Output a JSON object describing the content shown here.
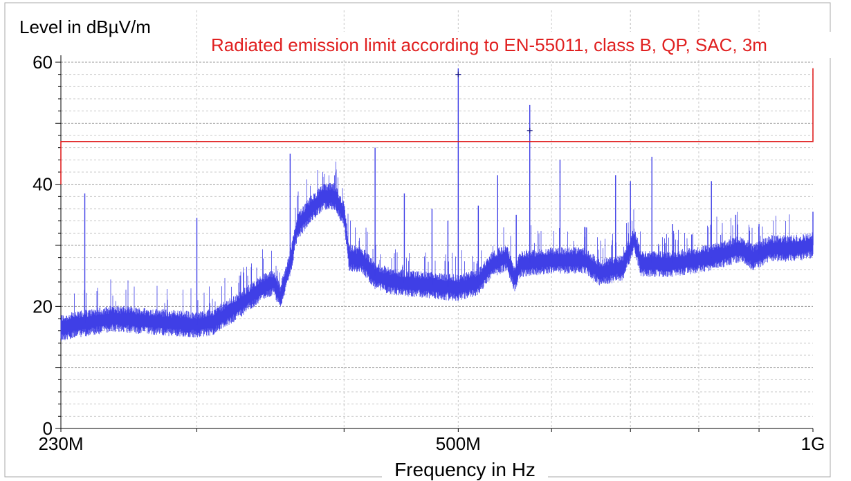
{
  "chart_data": {
    "type": "line",
    "ylabel": "Level in dBµV/m",
    "xlabel": "Frequency in Hz",
    "x_scale": "log",
    "xlim_hz": [
      230000000,
      1000000000
    ],
    "ylim": [
      0,
      60
    ],
    "x_tick_labels": [
      {
        "label": "230M",
        "value_hz": 230000000
      },
      {
        "label": "500M",
        "value_hz": 500000000
      },
      {
        "label": "1G",
        "value_hz": 1000000000
      }
    ],
    "y_tick_labels": [
      {
        "label": "0",
        "value": 0
      },
      {
        "label": "20",
        "value": 20
      },
      {
        "label": "40",
        "value": 40
      },
      {
        "label": "60",
        "value": 60
      }
    ],
    "grid": true,
    "limit_line": {
      "name": "Radiated emission limit according to EN-55011, class B, QP, SAC, 3m",
      "color": "#e02020",
      "points": [
        {
          "x_hz": 230000000,
          "y": 40
        },
        {
          "x_hz": 230000000,
          "y": 47
        },
        {
          "x_hz": 1000000000,
          "y": 47
        },
        {
          "x_hz": 1000000000,
          "y": 59
        }
      ]
    },
    "series": [
      {
        "color": "#3f3fe6",
        "baseline": [
          {
            "x_hz": 230000000,
            "y": 16.5
          },
          {
            "x_hz": 245000000,
            "y": 17.5
          },
          {
            "x_hz": 255000000,
            "y": 18.0
          },
          {
            "x_hz": 275000000,
            "y": 17.5
          },
          {
            "x_hz": 300000000,
            "y": 17.0
          },
          {
            "x_hz": 310000000,
            "y": 17.5
          },
          {
            "x_hz": 325000000,
            "y": 20.0
          },
          {
            "x_hz": 340000000,
            "y": 23.0
          },
          {
            "x_hz": 349000000,
            "y": 24.0
          },
          {
            "x_hz": 353000000,
            "y": 21.5
          },
          {
            "x_hz": 360000000,
            "y": 27.0
          },
          {
            "x_hz": 365000000,
            "y": 33.0
          },
          {
            "x_hz": 375000000,
            "y": 36.0
          },
          {
            "x_hz": 385000000,
            "y": 38.0
          },
          {
            "x_hz": 393000000,
            "y": 38.0
          },
          {
            "x_hz": 400000000,
            "y": 35.0
          },
          {
            "x_hz": 404000000,
            "y": 28.0
          },
          {
            "x_hz": 415000000,
            "y": 27.5
          },
          {
            "x_hz": 425000000,
            "y": 25.0
          },
          {
            "x_hz": 440000000,
            "y": 24.0
          },
          {
            "x_hz": 470000000,
            "y": 23.5
          },
          {
            "x_hz": 500000000,
            "y": 23.0
          },
          {
            "x_hz": 520000000,
            "y": 24.0
          },
          {
            "x_hz": 535000000,
            "y": 27.0
          },
          {
            "x_hz": 550000000,
            "y": 28.0
          },
          {
            "x_hz": 558000000,
            "y": 24.5
          },
          {
            "x_hz": 565000000,
            "y": 27.0
          },
          {
            "x_hz": 600000000,
            "y": 27.5
          },
          {
            "x_hz": 640000000,
            "y": 27.5
          },
          {
            "x_hz": 660000000,
            "y": 25.5
          },
          {
            "x_hz": 690000000,
            "y": 26.5
          },
          {
            "x_hz": 705000000,
            "y": 31.0
          },
          {
            "x_hz": 715000000,
            "y": 27.0
          },
          {
            "x_hz": 760000000,
            "y": 27.0
          },
          {
            "x_hz": 820000000,
            "y": 28.0
          },
          {
            "x_hz": 870000000,
            "y": 29.5
          },
          {
            "x_hz": 890000000,
            "y": 28.0
          },
          {
            "x_hz": 920000000,
            "y": 29.5
          },
          {
            "x_hz": 960000000,
            "y": 29.5
          },
          {
            "x_hz": 1000000000,
            "y": 30.0
          }
        ],
        "noise_band_db": 2.2,
        "spikes": [
          {
            "x_hz": 241000000,
            "y": 38.5
          },
          {
            "x_hz": 300000000,
            "y": 34.5
          },
          {
            "x_hz": 360000000,
            "y": 45.0
          },
          {
            "x_hz": 390000000,
            "y": 40.0
          },
          {
            "x_hz": 425000000,
            "y": 46.0
          },
          {
            "x_hz": 450000000,
            "y": 38.5
          },
          {
            "x_hz": 475000000,
            "y": 36.0
          },
          {
            "x_hz": 490000000,
            "y": 34.0
          },
          {
            "x_hz": 500000000,
            "y": 59.0
          },
          {
            "x_hz": 520000000,
            "y": 36.5
          },
          {
            "x_hz": 540000000,
            "y": 41.5
          },
          {
            "x_hz": 560000000,
            "y": 35.0
          },
          {
            "x_hz": 575000000,
            "y": 53.0
          },
          {
            "x_hz": 610000000,
            "y": 44.0
          },
          {
            "x_hz": 640000000,
            "y": 33.0
          },
          {
            "x_hz": 680000000,
            "y": 41.5
          },
          {
            "x_hz": 700000000,
            "y": 40.5
          },
          {
            "x_hz": 730000000,
            "y": 44.5
          },
          {
            "x_hz": 760000000,
            "y": 33.5
          },
          {
            "x_hz": 820000000,
            "y": 40.5
          },
          {
            "x_hz": 860000000,
            "y": 35.0
          },
          {
            "x_hz": 900000000,
            "y": 33.5
          },
          {
            "x_hz": 1000000000,
            "y": 35.5
          }
        ],
        "markers": [
          {
            "x_hz": 500000000,
            "y": 58.0
          },
          {
            "x_hz": 575000000,
            "y": 48.8
          }
        ]
      }
    ]
  }
}
